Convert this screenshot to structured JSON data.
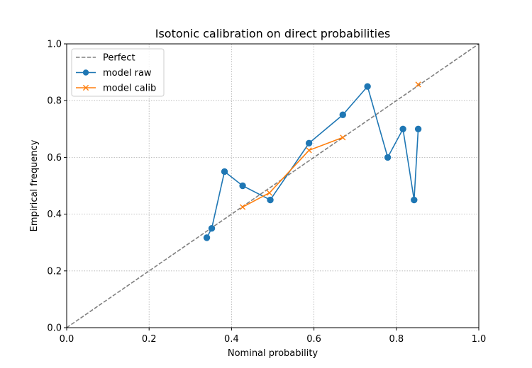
{
  "chart_data": {
    "type": "line",
    "title": "Isotonic calibration on direct probabilities",
    "xlabel": "Nominal probability",
    "ylabel": "Empirical frequency",
    "xlim": [
      0.0,
      1.0
    ],
    "ylim": [
      0.0,
      1.0
    ],
    "x_ticks": [
      "0.0",
      "0.2",
      "0.4",
      "0.6",
      "0.8",
      "1.0"
    ],
    "y_ticks": [
      "0.0",
      "0.2",
      "0.4",
      "0.6",
      "0.8",
      "1.0"
    ],
    "grid": true,
    "legend_position": "top-left",
    "series": [
      {
        "name": "Perfect",
        "style": "dashed",
        "marker": "none",
        "color": "#808080",
        "x": [
          0.0,
          1.0
        ],
        "y": [
          0.0,
          1.0
        ]
      },
      {
        "name": "model raw",
        "style": "solid",
        "marker": "circle",
        "color": "#1f77b4",
        "x": [
          0.34,
          0.352,
          0.383,
          0.427,
          0.494,
          0.588,
          0.67,
          0.73,
          0.779,
          0.816,
          0.843,
          0.853
        ],
        "y": [
          0.317,
          0.35,
          0.55,
          0.5,
          0.45,
          0.65,
          0.75,
          0.85,
          0.6,
          0.7,
          0.45,
          0.7
        ]
      },
      {
        "name": "model calib",
        "style": "solid",
        "marker": "x",
        "color": "#ff7f0e",
        "x": [
          0.427,
          0.492,
          0.588,
          0.67,
          0.853
        ],
        "y": [
          0.425,
          0.475,
          0.625,
          0.67,
          0.857
        ],
        "segments_break_after_index": 3
      }
    ]
  }
}
